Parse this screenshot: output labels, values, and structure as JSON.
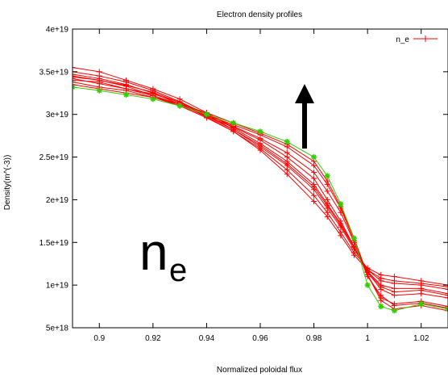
{
  "chart_data": {
    "type": "line",
    "title": "Electron density profiles",
    "xlabel": "Normalized poloidal flux",
    "ylabel": "Density(m^(-3))",
    "xlim": [
      0.89,
      1.03
    ],
    "ylim": [
      5e+18,
      4e+19
    ],
    "x_ticks": [
      "0.9",
      "0.92",
      "0.94",
      "0.96",
      "0.98",
      "1",
      "1.02"
    ],
    "x_tick_values": [
      0.9,
      0.92,
      0.94,
      0.96,
      0.98,
      1.0,
      1.02
    ],
    "y_ticks": [
      "5e+18",
      "1e+19",
      "1.5e+19",
      "2e+19",
      "2.5e+19",
      "3e+19",
      "3.5e+19",
      "4e+19"
    ],
    "y_tick_values": [
      5e+18,
      1e+19,
      1.5e+19,
      2e+19,
      2.5e+19,
      3e+19,
      3.5e+19,
      4e+19
    ],
    "grid": false,
    "legend": {
      "position": "top-right",
      "entries": [
        "n_e"
      ]
    },
    "annotation": {
      "text": "n",
      "subscript": "e"
    },
    "colors": {
      "profiles": "#ff0000",
      "highlight": "#33cc00",
      "arrow": "#000000"
    },
    "series": [
      {
        "name": "n_e",
        "x": [
          0.89,
          0.9,
          0.91,
          0.92,
          0.93,
          0.94,
          0.95,
          0.96,
          0.97,
          0.98,
          0.985,
          0.99,
          0.995,
          1.0,
          1.005,
          1.01,
          1.02,
          1.03
        ],
        "y": [
          3.35e+19,
          3.3e+19,
          3.25e+19,
          3.2e+19,
          3.12e+19,
          3.02e+19,
          2.9e+19,
          2.78e+19,
          2.65e+19,
          2.45e+19,
          2.22e+19,
          1.92e+19,
          1.55e+19,
          1.12e+19,
          8.5e+18,
          7.8e+18,
          8.1e+18,
          7.5e+18
        ]
      },
      {
        "name": "",
        "x": [
          0.89,
          0.9,
          0.91,
          0.92,
          0.93,
          0.94,
          0.95,
          0.96,
          0.97,
          0.98,
          0.985,
          0.99,
          0.995,
          1.0,
          1.005,
          1.01,
          1.02,
          1.03
        ],
        "y": [
          3.45e+19,
          3.4e+19,
          3.33e+19,
          3.22e+19,
          3.12e+19,
          2.98e+19,
          2.85e+19,
          2.7e+19,
          2.5e+19,
          2.25e+19,
          2e+19,
          1.75e+19,
          1.45e+19,
          1.15e+19,
          9.5e+18,
          8.8e+18,
          9e+18,
          8.5e+18
        ]
      },
      {
        "name": "",
        "x": [
          0.89,
          0.9,
          0.91,
          0.92,
          0.93,
          0.94,
          0.95,
          0.96,
          0.97,
          0.98,
          0.985,
          0.99,
          0.995,
          1.0,
          1.005,
          1.01,
          1.02,
          1.03
        ],
        "y": [
          3.5e+19,
          3.45e+19,
          3.38e+19,
          3.28e+19,
          3.15e+19,
          3e+19,
          2.82e+19,
          2.62e+19,
          2.4e+19,
          2.12e+19,
          1.9e+19,
          1.68e+19,
          1.42e+19,
          1.18e+19,
          1.05e+19,
          1.02e+19,
          1e+19,
          9.5e+18
        ]
      },
      {
        "name": "",
        "x": [
          0.89,
          0.9,
          0.91,
          0.92,
          0.93,
          0.94,
          0.95,
          0.96,
          0.97,
          0.98,
          0.985,
          0.99,
          0.995,
          1.0,
          1.005,
          1.01,
          1.02,
          1.03
        ],
        "y": [
          3.4e+19,
          3.38e+19,
          3.3e+19,
          3.22e+19,
          3.1e+19,
          2.96e+19,
          2.8e+19,
          2.6e+19,
          2.35e+19,
          2.05e+19,
          1.85e+19,
          1.62e+19,
          1.38e+19,
          1.2e+19,
          1.12e+19,
          1.1e+19,
          1.05e+19,
          1e+19
        ]
      },
      {
        "name": "",
        "x": [
          0.89,
          0.9,
          0.91,
          0.92,
          0.93,
          0.94,
          0.95,
          0.96,
          0.97,
          0.98,
          0.985,
          0.99,
          0.995,
          1.0,
          1.005,
          1.01,
          1.02,
          1.03
        ],
        "y": [
          3.42e+19,
          3.36e+19,
          3.3e+19,
          3.24e+19,
          3.14e+19,
          3e+19,
          2.86e+19,
          2.72e+19,
          2.55e+19,
          2.32e+19,
          2.1e+19,
          1.85e+19,
          1.5e+19,
          1.1e+19,
          8.8e+18,
          7.6e+18,
          7.9e+18,
          7.3e+18
        ]
      },
      {
        "name": "",
        "x": [
          0.89,
          0.9,
          0.91,
          0.92,
          0.93,
          0.94,
          0.95,
          0.96,
          0.97,
          0.98,
          0.985,
          0.99,
          0.995,
          1.0,
          1.005,
          1.01,
          1.02,
          1.03
        ],
        "y": [
          3.55e+19,
          3.5e+19,
          3.4e+19,
          3.3e+19,
          3.18e+19,
          3.02e+19,
          2.84e+19,
          2.66e+19,
          2.45e+19,
          2.18e+19,
          1.95e+19,
          1.72e+19,
          1.45e+19,
          1.15e+19,
          9.8e+18,
          9.2e+18,
          9.4e+18,
          8.8e+18
        ]
      },
      {
        "name": "",
        "x": [
          0.89,
          0.9,
          0.91,
          0.92,
          0.93,
          0.94,
          0.95,
          0.96,
          0.97,
          0.98,
          0.985,
          0.99,
          0.995,
          1.0,
          1.005,
          1.01,
          1.02,
          1.03
        ],
        "y": [
          3.47e+19,
          3.42e+19,
          3.35e+19,
          3.25e+19,
          3.12e+19,
          2.97e+19,
          2.8e+19,
          2.58e+19,
          2.3e+19,
          1.98e+19,
          1.8e+19,
          1.58e+19,
          1.35e+19,
          1.18e+19,
          1.08e+19,
          1.05e+19,
          1.02e+19,
          9.8e+18
        ]
      },
      {
        "name": "",
        "x": [
          0.89,
          0.9,
          0.91,
          0.92,
          0.93,
          0.94,
          0.95,
          0.96,
          0.97,
          0.98,
          0.985,
          0.99,
          0.995,
          1.0,
          1.005,
          1.01,
          1.02,
          1.03
        ],
        "y": [
          3.38e+19,
          3.32e+19,
          3.28e+19,
          3.2e+19,
          3.1e+19,
          2.99e+19,
          2.88e+19,
          2.76e+19,
          2.62e+19,
          2.4e+19,
          2.18e+19,
          1.9e+19,
          1.52e+19,
          1.12e+19,
          8.2e+18,
          7.2e+18,
          7.6e+18,
          7e+18
        ]
      },
      {
        "name": "",
        "x": [
          0.89,
          0.9,
          0.91,
          0.92,
          0.93,
          0.94,
          0.95,
          0.96,
          0.97,
          0.98,
          0.985,
          0.99,
          0.995,
          1.0,
          1.005,
          1.01,
          1.02,
          1.03
        ],
        "y": [
          3.44e+19,
          3.4e+19,
          3.34e+19,
          3.26e+19,
          3.14e+19,
          2.98e+19,
          2.82e+19,
          2.64e+19,
          2.42e+19,
          2.15e+19,
          1.93e+19,
          1.7e+19,
          1.44e+19,
          1.16e+19,
          1e+19,
          9.6e+18,
          9.6e+18,
          9e+18
        ]
      }
    ],
    "highlight_series": {
      "name": "",
      "x": [
        0.89,
        0.9,
        0.91,
        0.92,
        0.93,
        0.94,
        0.95,
        0.96,
        0.97,
        0.98,
        0.985,
        0.99,
        0.995,
        1.0,
        1.005,
        1.01,
        1.02,
        1.03
      ],
      "y": [
        3.32e+19,
        3.28e+19,
        3.23e+19,
        3.18e+19,
        3.1e+19,
        3e+19,
        2.9e+19,
        2.8e+19,
        2.68e+19,
        2.5e+19,
        2.28e+19,
        1.95e+19,
        1.55e+19,
        1e+19,
        7.5e+18,
        7e+18,
        7.8e+18,
        7.2e+18
      ]
    }
  }
}
